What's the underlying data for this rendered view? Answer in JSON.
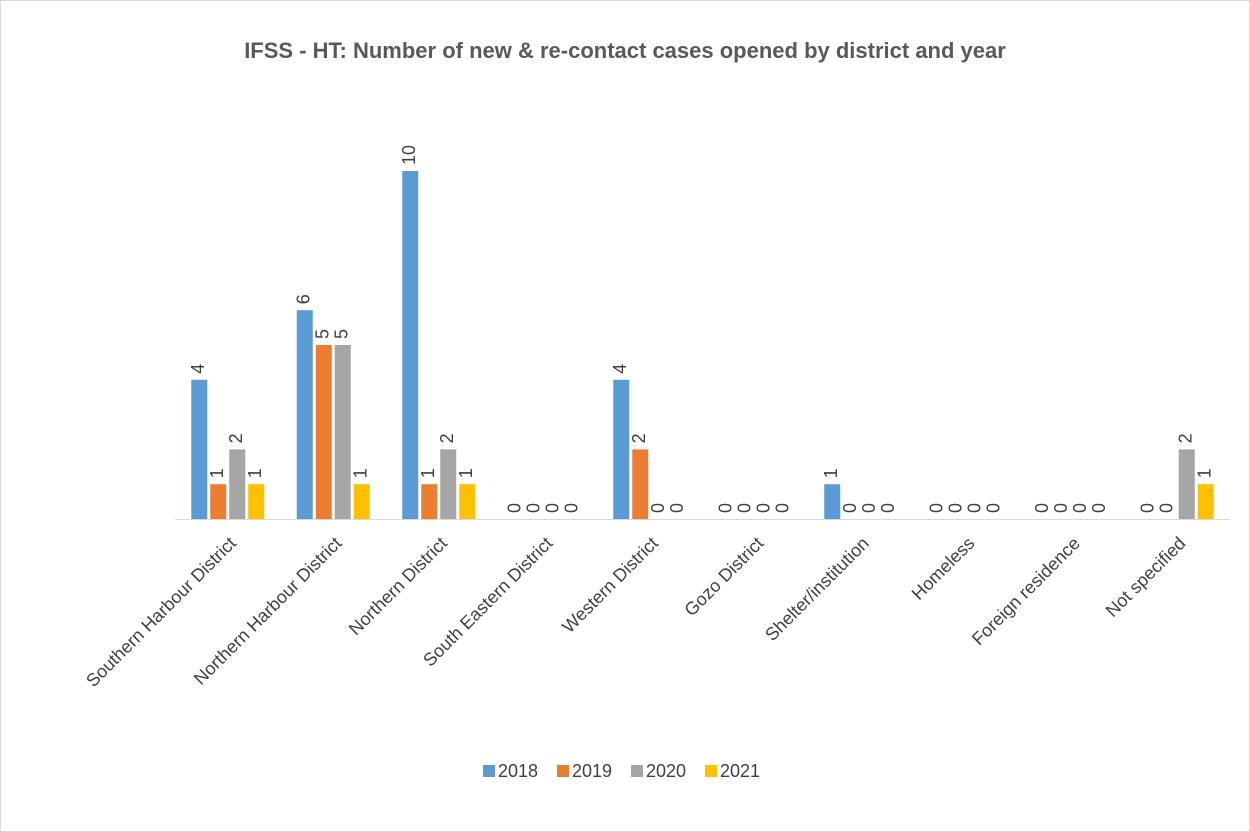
{
  "chart_data": {
    "type": "bar",
    "title": "IFSS - HT: Number of new & re-contact cases opened by district and year",
    "categories": [
      "Southern Harbour District",
      "Northern Harbour District",
      "Northern District",
      "South Eastern District",
      "Western District",
      "Gozo District",
      "Shelter/institution",
      "Homeless",
      "Foreign residence",
      "Not specified"
    ],
    "series": [
      {
        "name": "2018",
        "color": "#5b9bd5",
        "values": [
          4,
          6,
          10,
          0,
          4,
          0,
          1,
          0,
          0,
          0
        ]
      },
      {
        "name": "2019",
        "color": "#ed7d31",
        "values": [
          1,
          5,
          1,
          0,
          2,
          0,
          0,
          0,
          0,
          0
        ]
      },
      {
        "name": "2020",
        "color": "#a5a5a5",
        "values": [
          2,
          5,
          2,
          0,
          0,
          0,
          0,
          0,
          0,
          2
        ]
      },
      {
        "name": "2021",
        "color": "#ffc000",
        "values": [
          1,
          1,
          1,
          0,
          0,
          0,
          0,
          0,
          0,
          1
        ]
      }
    ],
    "ylim": [
      0,
      12
    ],
    "legend": "bottom"
  }
}
